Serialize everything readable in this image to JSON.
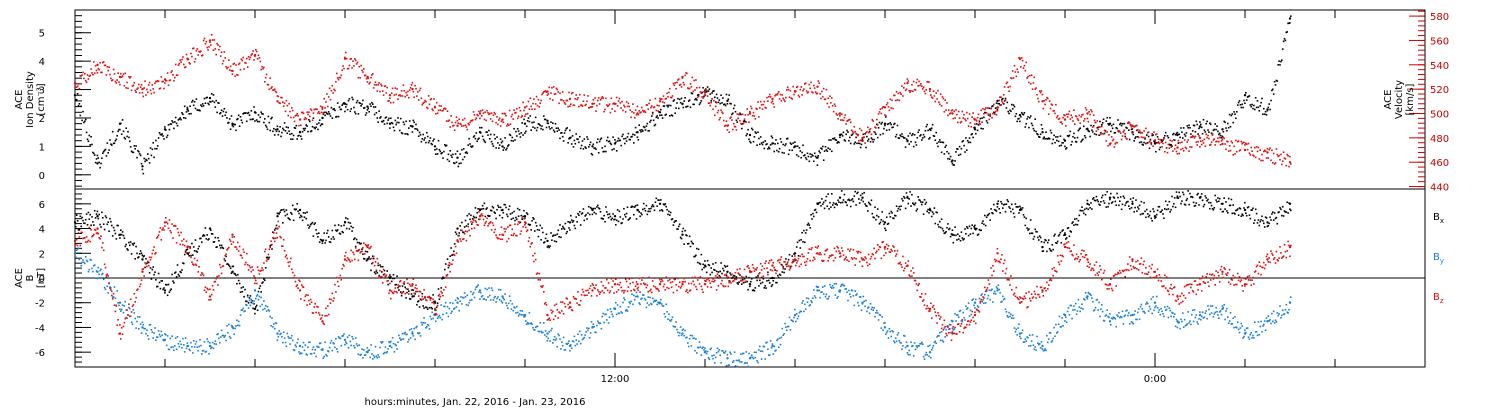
{
  "chart_data": {
    "type": "scatter",
    "xlabel": "hours:minutes, Jan. 22, 2016 - Jan. 23, 2016",
    "x_range_hours": [
      0,
      30
    ],
    "x_ticks": [
      {
        "label": "12:00",
        "hours": 12
      },
      {
        "label": "0:00",
        "hours": 24
      }
    ],
    "colors": {
      "black": "#000000",
      "red": "#dd1111",
      "blue": "#1a7fd4",
      "axis_red": "#cc0000"
    },
    "panels": [
      {
        "id": "top",
        "left_ylabel": [
          "ACE",
          "Ion Density",
          "[cm⁻³]"
        ],
        "right_ylabel": [
          "ACE",
          "Velocity",
          "[km/s]"
        ],
        "left_ylim": [
          -0.5,
          5.8
        ],
        "left_ticks": [
          "0",
          "1",
          "2",
          "3",
          "4",
          "5"
        ],
        "right_ylim": [
          438,
          585
        ],
        "right_ticks": [
          "440",
          "460",
          "480",
          "500",
          "520",
          "540",
          "560",
          "580"
        ],
        "series": [
          {
            "name": "Ion Density",
            "axis": "left",
            "color": "#000000",
            "x": [
              0.0,
              0.5,
              1.0,
              1.5,
              2.0,
              2.5,
              3.0,
              3.5,
              4.0,
              4.5,
              5.0,
              5.5,
              6.0,
              6.5,
              7.0,
              7.5,
              8.0,
              8.5,
              9.0,
              9.5,
              10.0,
              10.5,
              11.0,
              11.5,
              12.0,
              12.5,
              13.0,
              13.5,
              14.0,
              14.5,
              15.0,
              15.5,
              16.0,
              16.5,
              17.0,
              17.5,
              18.0,
              18.5,
              19.0,
              19.5,
              20.0,
              20.5,
              21.0,
              21.5,
              22.0,
              22.5,
              23.0,
              23.5,
              24.0,
              24.5,
              25.0,
              25.5,
              26.0,
              26.5,
              27.0
            ],
            "values": [
              2.8,
              0.4,
              1.8,
              0.3,
              1.6,
              2.3,
              2.7,
              1.8,
              2.2,
              1.6,
              1.5,
              2.0,
              2.5,
              2.4,
              1.8,
              1.7,
              1.0,
              0.6,
              1.5,
              1.0,
              1.8,
              1.9,
              1.3,
              1.0,
              1.1,
              1.5,
              2.2,
              2.5,
              2.9,
              2.6,
              1.4,
              1.1,
              1.0,
              0.6,
              1.4,
              1.2,
              1.8,
              1.2,
              1.6,
              0.5,
              1.6,
              2.6,
              2.1,
              1.5,
              1.2,
              1.6,
              1.8,
              1.5,
              1.1,
              1.4,
              1.7,
              1.6,
              2.8,
              2.3,
              5.5
            ]
          },
          {
            "name": "Velocity",
            "axis": "right",
            "color": "#dd1111",
            "x": [
              0.0,
              0.5,
              1.0,
              1.5,
              2.0,
              2.5,
              3.0,
              3.5,
              4.0,
              4.5,
              5.0,
              5.5,
              6.0,
              6.5,
              7.0,
              7.5,
              8.0,
              8.5,
              9.0,
              9.5,
              10.0,
              10.5,
              11.0,
              11.5,
              12.0,
              12.5,
              13.0,
              13.5,
              14.0,
              14.5,
              15.0,
              15.5,
              16.0,
              16.5,
              17.0,
              17.5,
              18.0,
              18.5,
              19.0,
              19.5,
              20.0,
              20.5,
              21.0,
              21.5,
              22.0,
              22.5,
              23.0,
              23.5,
              24.0,
              24.5,
              25.0,
              25.5,
              26.0,
              26.5,
              27.0
            ],
            "values": [
              525,
              540,
              530,
              520,
              528,
              545,
              560,
              535,
              548,
              510,
              495,
              505,
              545,
              530,
              515,
              520,
              505,
              490,
              500,
              495,
              505,
              518,
              512,
              508,
              508,
              500,
              510,
              530,
              515,
              490,
              500,
              512,
              518,
              522,
              500,
              480,
              505,
              525,
              520,
              500,
              495,
              505,
              545,
              510,
              495,
              500,
              475,
              490,
              478,
              472,
              480,
              475,
              470,
              468,
              460
            ]
          }
        ]
      },
      {
        "id": "bottom",
        "left_ylabel": [
          "ACE",
          "B",
          "[nT]"
        ],
        "left_ylim": [
          -7.2,
          7.2
        ],
        "left_ticks": [
          "-6",
          "-4",
          "-2",
          "0",
          "2",
          "4",
          "6"
        ],
        "zero_line": true,
        "legend": [
          {
            "text": "B",
            "sub": "x",
            "color": "#000000"
          },
          {
            "text": "B",
            "sub": "y",
            "color": "#1a7fd4"
          },
          {
            "text": "B",
            "sub": "z",
            "color": "#dd1111"
          }
        ],
        "series": [
          {
            "name": "Bx",
            "color": "#000000",
            "x": [
              0.0,
              0.5,
              1.0,
              1.5,
              2.0,
              2.5,
              3.0,
              3.5,
              4.0,
              4.5,
              5.0,
              5.5,
              6.0,
              6.5,
              7.0,
              7.5,
              8.0,
              8.5,
              9.0,
              9.5,
              10.0,
              10.5,
              11.0,
              11.5,
              12.0,
              12.5,
              13.0,
              13.5,
              14.0,
              14.5,
              15.0,
              15.5,
              16.0,
              16.5,
              17.0,
              17.5,
              18.0,
              18.5,
              19.0,
              19.5,
              20.0,
              20.5,
              21.0,
              21.5,
              22.0,
              22.5,
              23.0,
              23.5,
              24.0,
              24.5,
              25.0,
              25.5,
              26.0,
              26.5,
              27.0
            ],
            "values": [
              4.5,
              5.0,
              3.5,
              1.5,
              -1.0,
              2.0,
              4.0,
              0.5,
              -2.5,
              5.0,
              5.5,
              3.0,
              4.5,
              1.5,
              0.0,
              -1.5,
              -2.0,
              4.0,
              5.5,
              5.5,
              5.0,
              3.0,
              4.5,
              5.5,
              5.0,
              5.5,
              6.0,
              3.5,
              1.0,
              0.5,
              -0.5,
              0.0,
              2.0,
              6.0,
              6.5,
              6.5,
              4.5,
              6.5,
              5.5,
              3.5,
              4.0,
              6.0,
              5.5,
              2.5,
              3.5,
              6.0,
              6.5,
              6.0,
              5.0,
              6.5,
              6.5,
              6.0,
              5.5,
              4.5,
              6.0
            ]
          },
          {
            "name": "By",
            "color": "#1a7fd4",
            "x": [
              0.0,
              0.5,
              1.0,
              1.5,
              2.0,
              2.5,
              3.0,
              3.5,
              4.0,
              4.5,
              5.0,
              5.5,
              6.0,
              6.5,
              7.0,
              7.5,
              8.0,
              8.5,
              9.0,
              9.5,
              10.0,
              10.5,
              11.0,
              11.5,
              12.0,
              12.5,
              13.0,
              13.5,
              14.0,
              14.5,
              15.0,
              15.5,
              16.0,
              16.5,
              17.0,
              17.5,
              18.0,
              18.5,
              19.0,
              19.5,
              20.0,
              20.5,
              21.0,
              21.5,
              22.0,
              22.5,
              23.0,
              23.5,
              24.0,
              24.5,
              25.0,
              25.5,
              26.0,
              26.5,
              27.0
            ],
            "values": [
              2.0,
              0.5,
              -2.0,
              -4.0,
              -5.0,
              -5.5,
              -5.5,
              -4.0,
              -1.0,
              -4.5,
              -5.5,
              -5.8,
              -5.0,
              -6.0,
              -5.5,
              -4.5,
              -3.0,
              -2.0,
              -1.0,
              -1.5,
              -3.0,
              -4.5,
              -5.5,
              -4.0,
              -2.5,
              -1.5,
              -2.0,
              -4.5,
              -6.0,
              -6.5,
              -6.5,
              -5.5,
              -3.0,
              -1.0,
              -1.0,
              -2.0,
              -4.0,
              -5.5,
              -6.0,
              -3.5,
              -2.0,
              -1.0,
              -4.5,
              -5.5,
              -3.0,
              -1.5,
              -3.5,
              -3.0,
              -2.0,
              -3.5,
              -3.0,
              -2.5,
              -4.5,
              -3.5,
              -2.0
            ]
          },
          {
            "name": "Bz",
            "color": "#dd1111",
            "x": [
              0.0,
              0.5,
              1.0,
              1.5,
              2.0,
              2.5,
              3.0,
              3.5,
              4.0,
              4.5,
              5.0,
              5.5,
              6.0,
              6.5,
              7.0,
              7.5,
              8.0,
              8.5,
              9.0,
              9.5,
              10.0,
              10.5,
              11.0,
              11.5,
              12.0,
              12.5,
              13.0,
              13.5,
              14.0,
              14.5,
              15.0,
              15.5,
              16.0,
              16.5,
              17.0,
              17.5,
              18.0,
              18.5,
              19.0,
              19.5,
              20.0,
              20.5,
              21.0,
              21.5,
              22.0,
              22.5,
              23.0,
              23.5,
              24.0,
              24.5,
              25.0,
              25.5,
              26.0,
              26.5,
              27.0
            ],
            "values": [
              3.0,
              4.0,
              -4.5,
              0.5,
              4.5,
              2.5,
              -1.5,
              3.5,
              0.0,
              4.0,
              -1.0,
              -3.5,
              1.5,
              2.5,
              -1.0,
              -0.5,
              -2.5,
              3.0,
              5.0,
              3.5,
              4.5,
              -3.0,
              -2.0,
              -1.0,
              -0.5,
              -0.5,
              -0.5,
              -0.5,
              -0.5,
              0.0,
              0.5,
              1.0,
              1.5,
              2.0,
              2.0,
              1.5,
              2.5,
              1.0,
              -2.5,
              -4.5,
              -3.0,
              2.0,
              -2.0,
              -1.0,
              2.5,
              1.5,
              -0.5,
              1.5,
              0.5,
              -1.5,
              -0.5,
              0.5,
              -0.5,
              1.5,
              2.5
            ]
          }
        ]
      }
    ]
  }
}
